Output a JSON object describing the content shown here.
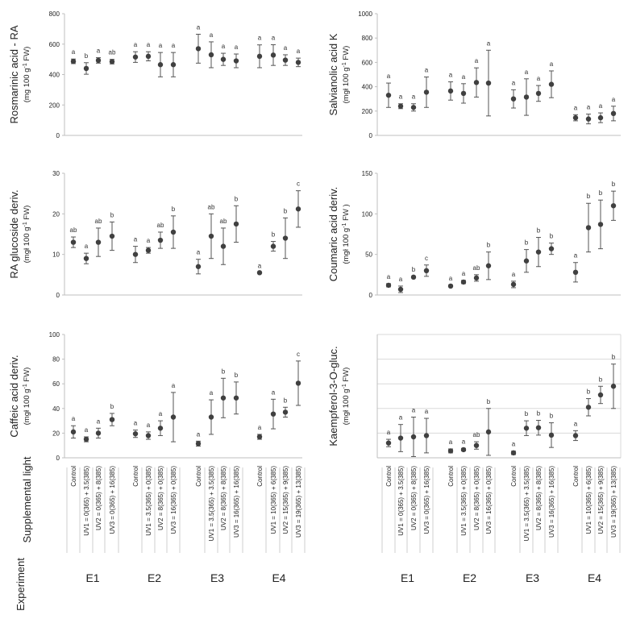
{
  "chart_data": [
    {
      "type": "scatter",
      "ylabel": "Rosmarinic  acid - RA",
      "ylabel_unit": "(mg 100 g-1 FW)",
      "ylim": [
        0,
        800
      ],
      "yticks": [
        "0",
        "200",
        "400",
        "600",
        "800"
      ],
      "points": [
        {
          "group": "E1",
          "treatment": "Control",
          "y": 487,
          "err": 15,
          "letter": "a"
        },
        {
          "group": "E1",
          "treatment": "UV1",
          "y": 440,
          "err": 38,
          "letter": "b"
        },
        {
          "group": "E1",
          "treatment": "UV2",
          "y": 493,
          "err": 18,
          "letter": "a"
        },
        {
          "group": "E1",
          "treatment": "UV3",
          "y": 485,
          "err": 15,
          "letter": "ab"
        },
        {
          "group": "E2",
          "treatment": "Control",
          "y": 515,
          "err": 35,
          "letter": "a"
        },
        {
          "group": "E2",
          "treatment": "UV1",
          "y": 520,
          "err": 30,
          "letter": "a"
        },
        {
          "group": "E2",
          "treatment": "UV2",
          "y": 465,
          "err": 80,
          "letter": "a"
        },
        {
          "group": "E2",
          "treatment": "UV3",
          "y": 465,
          "err": 80,
          "letter": "a"
        },
        {
          "group": "E3",
          "treatment": "Control",
          "y": 570,
          "err": 95,
          "letter": "a"
        },
        {
          "group": "E3",
          "treatment": "UV1",
          "y": 530,
          "err": 85,
          "letter": "a"
        },
        {
          "group": "E3",
          "treatment": "UV2",
          "y": 500,
          "err": 40,
          "letter": "a"
        },
        {
          "group": "E3",
          "treatment": "UV3",
          "y": 490,
          "err": 45,
          "letter": "a"
        },
        {
          "group": "E4",
          "treatment": "Control",
          "y": 520,
          "err": 75,
          "letter": "a"
        },
        {
          "group": "E4",
          "treatment": "UV1",
          "y": 528,
          "err": 68,
          "letter": "a"
        },
        {
          "group": "E4",
          "treatment": "UV2",
          "y": 495,
          "err": 35,
          "letter": "a"
        },
        {
          "group": "E4",
          "treatment": "UV3",
          "y": 480,
          "err": 28,
          "letter": "a"
        }
      ]
    },
    {
      "type": "scatter",
      "ylabel": "Salvianolic acid K",
      "ylabel_unit": "(mgł 100 g-1 FW)",
      "ylim": [
        0,
        1000
      ],
      "yticks": [
        "0",
        "200",
        "400",
        "600",
        "800",
        "1000"
      ],
      "points": [
        {
          "group": "E1",
          "treatment": "Control",
          "y": 330,
          "err": 100,
          "letter": "a"
        },
        {
          "group": "E1",
          "treatment": "UV1",
          "y": 240,
          "err": 20,
          "letter": "a"
        },
        {
          "group": "E1",
          "treatment": "UV2",
          "y": 230,
          "err": 30,
          "letter": "a"
        },
        {
          "group": "E1",
          "treatment": "UV3",
          "y": 355,
          "err": 125,
          "letter": "a"
        },
        {
          "group": "E2",
          "treatment": "Control",
          "y": 365,
          "err": 75,
          "letter": "a"
        },
        {
          "group": "E2",
          "treatment": "UV1",
          "y": 345,
          "err": 80,
          "letter": "a"
        },
        {
          "group": "E2",
          "treatment": "UV2",
          "y": 435,
          "err": 120,
          "letter": "a"
        },
        {
          "group": "E2",
          "treatment": "UV3",
          "y": 430,
          "err": 270,
          "letter": "a"
        },
        {
          "group": "E3",
          "treatment": "Control",
          "y": 300,
          "err": 75,
          "letter": "a"
        },
        {
          "group": "E3",
          "treatment": "UV1",
          "y": 315,
          "err": 150,
          "letter": "a"
        },
        {
          "group": "E3",
          "treatment": "UV2",
          "y": 345,
          "err": 65,
          "letter": "a"
        },
        {
          "group": "E3",
          "treatment": "UV3",
          "y": 420,
          "err": 110,
          "letter": "a"
        },
        {
          "group": "E4",
          "treatment": "Control",
          "y": 145,
          "err": 25,
          "letter": "a"
        },
        {
          "group": "E4",
          "treatment": "UV1",
          "y": 135,
          "err": 40,
          "letter": "a"
        },
        {
          "group": "E4",
          "treatment": "UV2",
          "y": 145,
          "err": 40,
          "letter": "a"
        },
        {
          "group": "E4",
          "treatment": "UV3",
          "y": 180,
          "err": 60,
          "letter": "a"
        }
      ]
    },
    {
      "type": "scatter",
      "ylabel": "RA glucoside deriv.",
      "ylabel_unit": "(mgł 100 g-1 FW)",
      "ylim": [
        0,
        30
      ],
      "yticks": [
        "0",
        "10",
        "20",
        "30"
      ],
      "points": [
        {
          "group": "E1",
          "treatment": "Control",
          "y": 13,
          "err": 1.3,
          "letter": "ab"
        },
        {
          "group": "E1",
          "treatment": "UV1",
          "y": 9,
          "err": 1.3,
          "letter": "a"
        },
        {
          "group": "E1",
          "treatment": "UV2",
          "y": 13,
          "err": 3.5,
          "letter": "ab"
        },
        {
          "group": "E1",
          "treatment": "UV3",
          "y": 14.5,
          "err": 3.5,
          "letter": "b"
        },
        {
          "group": "E2",
          "treatment": "Control",
          "y": 10,
          "err": 2,
          "letter": "a"
        },
        {
          "group": "E2",
          "treatment": "UV1",
          "y": 11,
          "err": 0.7,
          "letter": "a"
        },
        {
          "group": "E2",
          "treatment": "UV2",
          "y": 13.5,
          "err": 2,
          "letter": "ab"
        },
        {
          "group": "E2",
          "treatment": "UV3",
          "y": 15.5,
          "err": 4,
          "letter": "b"
        },
        {
          "group": "E3",
          "treatment": "Control",
          "y": 7,
          "err": 1.8,
          "letter": "a"
        },
        {
          "group": "E3",
          "treatment": "UV1",
          "y": 14.5,
          "err": 5.5,
          "letter": "ab"
        },
        {
          "group": "E3",
          "treatment": "UV2",
          "y": 12,
          "err": 4.5,
          "letter": "ab"
        },
        {
          "group": "E3",
          "treatment": "UV3",
          "y": 17.5,
          "err": 4.5,
          "letter": "b"
        },
        {
          "group": "E4",
          "treatment": "Control",
          "y": 5.5,
          "err": 0,
          "letter": "a"
        },
        {
          "group": "E4",
          "treatment": "UV1",
          "y": 12,
          "err": 1.2,
          "letter": "b"
        },
        {
          "group": "E4",
          "treatment": "UV2",
          "y": 14,
          "err": 5,
          "letter": "b"
        },
        {
          "group": "E4",
          "treatment": "UV3",
          "y": 21.2,
          "err": 4.5,
          "letter": "c"
        }
      ]
    },
    {
      "type": "scatter",
      "ylabel": "Coumaric  acid  deriv.",
      "ylabel_unit": "(mgł 100 g-1 FW )",
      "ylim": [
        0,
        150
      ],
      "yticks": [
        "0",
        "50",
        "100",
        "150"
      ],
      "points": [
        {
          "group": "E1",
          "treatment": "Control",
          "y": 12,
          "err": 2,
          "letter": "a"
        },
        {
          "group": "E1",
          "treatment": "UV1",
          "y": 7,
          "err": 4,
          "letter": "a"
        },
        {
          "group": "E1",
          "treatment": "UV2",
          "y": 22,
          "err": 1,
          "letter": "b"
        },
        {
          "group": "E1",
          "treatment": "UV3",
          "y": 30,
          "err": 7,
          "letter": "c"
        },
        {
          "group": "E2",
          "treatment": "Control",
          "y": 11,
          "err": 1,
          "letter": "a"
        },
        {
          "group": "E2",
          "treatment": "UV1",
          "y": 16,
          "err": 2,
          "letter": "a"
        },
        {
          "group": "E2",
          "treatment": "UV2",
          "y": 21,
          "err": 4,
          "letter": "ab"
        },
        {
          "group": "E2",
          "treatment": "UV3",
          "y": 36,
          "err": 17,
          "letter": "b"
        },
        {
          "group": "E3",
          "treatment": "Control",
          "y": 13,
          "err": 4,
          "letter": "a"
        },
        {
          "group": "E3",
          "treatment": "UV1",
          "y": 42,
          "err": 14,
          "letter": "b"
        },
        {
          "group": "E3",
          "treatment": "UV2",
          "y": 53,
          "err": 18,
          "letter": "b"
        },
        {
          "group": "E3",
          "treatment": "UV3",
          "y": 57,
          "err": 7,
          "letter": "b"
        },
        {
          "group": "E4",
          "treatment": "Control",
          "y": 28,
          "err": 12,
          "letter": "a"
        },
        {
          "group": "E4",
          "treatment": "UV1",
          "y": 83,
          "err": 30,
          "letter": "b"
        },
        {
          "group": "E4",
          "treatment": "UV2",
          "y": 87,
          "err": 30,
          "letter": "b"
        },
        {
          "group": "E4",
          "treatment": "UV3",
          "y": 110,
          "err": 18,
          "letter": "b"
        }
      ]
    },
    {
      "type": "scatter",
      "ylabel": "Caffeic  acid  deriv.",
      "ylabel_unit": "(mgł 100 g-1 FW)",
      "ylim": [
        0,
        100
      ],
      "yticks": [
        "0",
        "20",
        "40",
        "60",
        "80",
        "100"
      ],
      "points": [
        {
          "group": "E1",
          "treatment": "Control",
          "y": 21,
          "err": 5,
          "letter": "a"
        },
        {
          "group": "E1",
          "treatment": "UV1",
          "y": 15,
          "err": 2,
          "letter": "a"
        },
        {
          "group": "E1",
          "treatment": "UV2",
          "y": 20,
          "err": 4,
          "letter": "a"
        },
        {
          "group": "E1",
          "treatment": "UV3",
          "y": 31,
          "err": 5,
          "letter": "b"
        },
        {
          "group": "E2",
          "treatment": "Control",
          "y": 19.5,
          "err": 3,
          "letter": "a"
        },
        {
          "group": "E2",
          "treatment": "UV1",
          "y": 18,
          "err": 3,
          "letter": "a"
        },
        {
          "group": "E2",
          "treatment": "UV2",
          "y": 24,
          "err": 6,
          "letter": "a"
        },
        {
          "group": "E2",
          "treatment": "UV3",
          "y": 33,
          "err": 20,
          "letter": "a"
        },
        {
          "group": "E3",
          "treatment": "Control",
          "y": 11.5,
          "err": 2,
          "letter": "a"
        },
        {
          "group": "E3",
          "treatment": "UV1",
          "y": 33,
          "err": 14,
          "letter": "a"
        },
        {
          "group": "E3",
          "treatment": "UV2",
          "y": 48.5,
          "err": 16,
          "letter": "b"
        },
        {
          "group": "E3",
          "treatment": "UV3",
          "y": 48.5,
          "err": 13,
          "letter": "b"
        },
        {
          "group": "E4",
          "treatment": "Control",
          "y": 17,
          "err": 2,
          "letter": "a"
        },
        {
          "group": "E4",
          "treatment": "UV1",
          "y": 35.5,
          "err": 12,
          "letter": "a"
        },
        {
          "group": "E4",
          "treatment": "UV2",
          "y": 37,
          "err": 4,
          "letter": "b"
        },
        {
          "group": "E4",
          "treatment": "UV3",
          "y": 60.5,
          "err": 18,
          "letter": "c"
        }
      ]
    },
    {
      "type": "scatter",
      "ylabel": "Kaempferol-3-O-gluc.",
      "ylabel_unit": "(mgł 100 g-1 FW)",
      "ylim": [
        0,
        5
      ],
      "yticks": [],
      "points": [
        {
          "group": "E1",
          "treatment": "Control",
          "y": 0.6,
          "err": 0.15,
          "letter": "a"
        },
        {
          "group": "E1",
          "treatment": "UV1",
          "y": 0.8,
          "err": 0.55,
          "letter": "a"
        },
        {
          "group": "E1",
          "treatment": "UV2",
          "y": 0.85,
          "err": 0.8,
          "letter": "a"
        },
        {
          "group": "E1",
          "treatment": "UV3",
          "y": 0.9,
          "err": 0.7,
          "letter": "a"
        },
        {
          "group": "E2",
          "treatment": "Control",
          "y": 0.28,
          "err": 0.08,
          "letter": "a"
        },
        {
          "group": "E2",
          "treatment": "UV1",
          "y": 0.33,
          "err": 0.05,
          "letter": "a"
        },
        {
          "group": "E2",
          "treatment": "UV2",
          "y": 0.5,
          "err": 0.15,
          "letter": "ab"
        },
        {
          "group": "E2",
          "treatment": "UV3",
          "y": 1.05,
          "err": 0.95,
          "letter": "b"
        },
        {
          "group": "E3",
          "treatment": "Control",
          "y": 0.2,
          "err": 0.07,
          "letter": "a"
        },
        {
          "group": "E3",
          "treatment": "UV1",
          "y": 1.2,
          "err": 0.3,
          "letter": "b"
        },
        {
          "group": "E3",
          "treatment": "UV2",
          "y": 1.22,
          "err": 0.3,
          "letter": "b"
        },
        {
          "group": "E3",
          "treatment": "UV3",
          "y": 0.92,
          "err": 0.5,
          "letter": "b"
        },
        {
          "group": "E4",
          "treatment": "Control",
          "y": 0.9,
          "err": 0.2,
          "letter": "a"
        },
        {
          "group": "E4",
          "treatment": "UV1",
          "y": 2.05,
          "err": 0.35,
          "letter": "b"
        },
        {
          "group": "E4",
          "treatment": "UV2",
          "y": 2.55,
          "err": 0.35,
          "letter": "b"
        },
        {
          "group": "E4",
          "treatment": "UV3",
          "y": 2.9,
          "err": 0.9,
          "letter": "b"
        }
      ]
    }
  ],
  "x_axis": {
    "supplemental_light_label": "Supplemental light",
    "experiment_label": "Experiment",
    "groups": [
      "E1",
      "E2",
      "E3",
      "E4"
    ],
    "treatments": {
      "E1": [
        "Control",
        "UV1 = 0(365) + 3.5(385)",
        "UV2 = 0(365) + 8(385)",
        "UV3 = 0(365) + 16(385)"
      ],
      "E2": [
        "Control",
        "UV1 = 3.5(365) + 0(385)",
        "UV2 = 8(365) + 0(385)",
        "UV3 = 16(365) + 0(385)"
      ],
      "E3": [
        "Control",
        "UV1 = 3.5(365) + 3.5(385)",
        "UV2 = 8(365) + 8(385)",
        "UV3 = 16(365) + 16(385)"
      ],
      "E4": [
        "Control",
        "UV1 = 10(365) + 6(385)",
        "UV2 = 15(365) + 9(385)",
        "UV3 = 19(365) + 13(385)"
      ]
    }
  },
  "colors": {
    "marker": "#404040",
    "axis": "#bfbfbf",
    "grid": "#d9d9d9",
    "text": "#222222"
  }
}
